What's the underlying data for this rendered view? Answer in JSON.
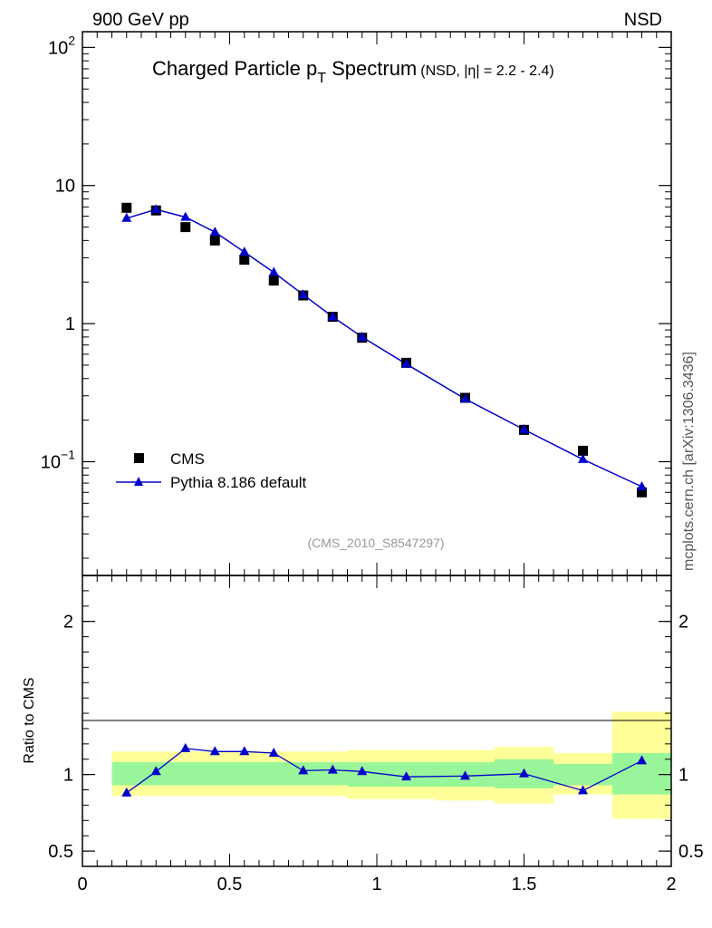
{
  "header": {
    "left": "900 GeV pp",
    "right": "NSD"
  },
  "watermark": "mcplots.cern.ch [arXiv:1306.3436]",
  "analysis_id": "(CMS_2010_S8547297)",
  "colors": {
    "data": "#000000",
    "mc": "#0000cc",
    "band_inner": "#99f599",
    "band_outer": "#ffff99"
  },
  "chart_data": [
    {
      "type": "scatter",
      "panel": "main",
      "title_main": "Charged Particle p",
      "title_sub": "T",
      "title_rest": " Spectrum",
      "title_small": "(NSD, |η| = 2.2 - 2.4)",
      "xlim": [
        0,
        2
      ],
      "ylim": [
        0.015,
        130
      ],
      "yscale": "log",
      "y_ticks": [
        {
          "value": 100,
          "base": "10",
          "exp": "2"
        },
        {
          "value": 10,
          "base": "10",
          "exp": ""
        },
        {
          "value": 1,
          "base": "1",
          "exp": ""
        },
        {
          "value": 0.1,
          "base": "10",
          "exp": "−1"
        }
      ],
      "legend_position": "bottom-left",
      "series": [
        {
          "name": "CMS",
          "marker": "square",
          "x": [
            0.15,
            0.25,
            0.35,
            0.45,
            0.55,
            0.65,
            0.75,
            0.85,
            0.95,
            1.1,
            1.3,
            1.5,
            1.7,
            1.9
          ],
          "y": [
            6.9,
            6.6,
            5.0,
            4.0,
            2.9,
            2.05,
            1.6,
            1.12,
            0.79,
            0.52,
            0.29,
            0.17,
            0.12,
            0.06
          ]
        },
        {
          "name": "Pythia 8.186 default",
          "marker": "triangle",
          "x": [
            0.15,
            0.25,
            0.35,
            0.45,
            0.55,
            0.65,
            0.75,
            0.85,
            0.95,
            1.1,
            1.3,
            1.5,
            1.7,
            1.9
          ],
          "y": [
            5.8,
            6.7,
            5.9,
            4.6,
            3.3,
            2.35,
            1.62,
            1.12,
            0.8,
            0.51,
            0.285,
            0.171,
            0.104,
            0.066
          ]
        }
      ]
    },
    {
      "type": "line",
      "panel": "ratio",
      "ylabel": "Ratio to CMS",
      "xlim": [
        0,
        2
      ],
      "ylim": [
        0.4,
        2.3
      ],
      "y_ticks": [
        {
          "value": 0.5,
          "label": "0.5"
        },
        {
          "value": 1,
          "label": "1"
        },
        {
          "value": 2,
          "label": "2"
        }
      ],
      "x_ticks": [
        {
          "value": 0,
          "label": "0"
        },
        {
          "value": 0.5,
          "label": "0.5"
        },
        {
          "value": 1,
          "label": "1"
        },
        {
          "value": 1.5,
          "label": "1.5"
        },
        {
          "value": 2,
          "label": "2"
        }
      ],
      "bands": {
        "x_edges": [
          0.1,
          0.2,
          0.3,
          0.4,
          0.5,
          0.6,
          0.7,
          0.8,
          0.9,
          1.0,
          1.2,
          1.4,
          1.6,
          1.8,
          2.0
        ],
        "inner_lo": [
          0.93,
          0.93,
          0.93,
          0.93,
          0.93,
          0.93,
          0.93,
          0.93,
          0.92,
          0.92,
          0.92,
          0.91,
          0.93,
          0.87
        ],
        "inner_hi": [
          1.08,
          1.08,
          1.08,
          1.08,
          1.08,
          1.08,
          1.08,
          1.08,
          1.08,
          1.08,
          1.08,
          1.1,
          1.07,
          1.14
        ],
        "outer_lo": [
          0.86,
          0.86,
          0.86,
          0.86,
          0.86,
          0.86,
          0.86,
          0.86,
          0.84,
          0.84,
          0.83,
          0.81,
          0.87,
          0.71
        ],
        "outer_hi": [
          1.15,
          1.15,
          1.15,
          1.15,
          1.15,
          1.15,
          1.15,
          1.15,
          1.16,
          1.16,
          1.16,
          1.18,
          1.14,
          1.41
        ]
      },
      "series": [
        {
          "name": "Pythia 8.186 default",
          "x": [
            0.15,
            0.25,
            0.35,
            0.45,
            0.55,
            0.65,
            0.75,
            0.85,
            0.95,
            1.1,
            1.3,
            1.5,
            1.7,
            1.9
          ],
          "y": [
            0.88,
            1.02,
            1.17,
            1.15,
            1.15,
            1.14,
            1.025,
            1.03,
            1.02,
            0.985,
            0.99,
            1.005,
            0.895,
            1.09
          ]
        }
      ]
    }
  ]
}
